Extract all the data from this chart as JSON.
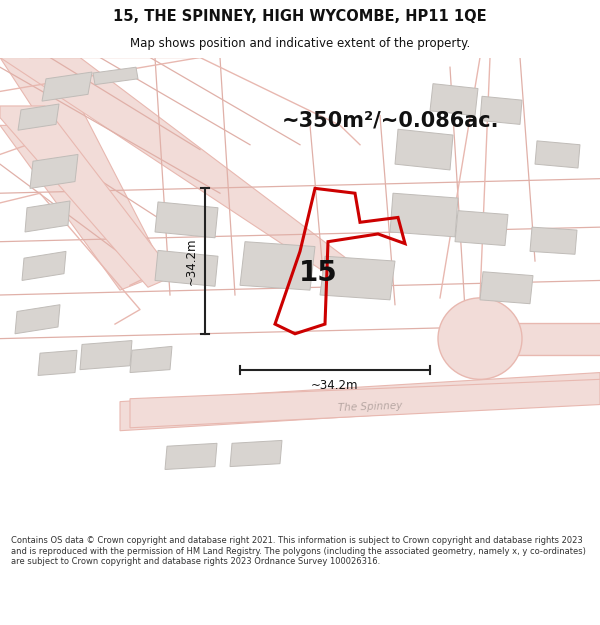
{
  "title_line1": "15, THE SPINNEY, HIGH WYCOMBE, HP11 1QE",
  "title_line2": "Map shows position and indicative extent of the property.",
  "area_text": "~350m²/~0.086ac.",
  "label_number": "15",
  "dim_vertical": "~34.2m",
  "dim_horizontal": "~34.2m",
  "footer_text": "Contains OS data © Crown copyright and database right 2021. This information is subject to Crown copyright and database rights 2023 and is reproduced with the permission of HM Land Registry. The polygons (including the associated geometry, namely x, y co-ordinates) are subject to Crown copyright and database rights 2023 Ordnance Survey 100026316.",
  "map_bg": "#f9f8f7",
  "road_fill": "#f2dcd8",
  "road_edge": "#e8b8b0",
  "building_fill": "#d8d4d0",
  "building_edge": "#c0bcb8",
  "plot_color": "#cc0000",
  "dim_color": "#222222",
  "title_color": "#111111",
  "street_label_color": "#b8a8a4"
}
